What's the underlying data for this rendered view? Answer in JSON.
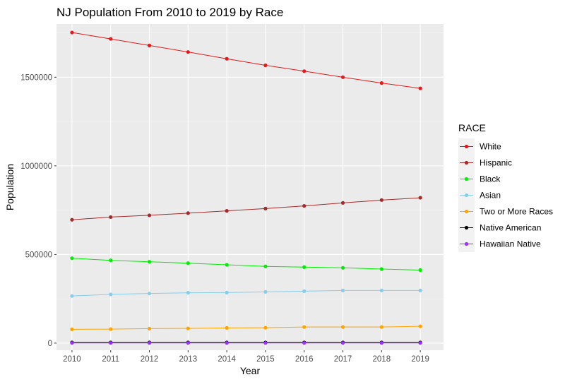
{
  "chart_data": {
    "type": "line",
    "title": "NJ Population From 2010 to 2019 by Race",
    "xlabel": "Year",
    "ylabel": "Population",
    "x": [
      2010,
      2011,
      2012,
      2013,
      2014,
      2015,
      2016,
      2017,
      2018,
      2019
    ],
    "xlim": [
      2009.6,
      2019.6
    ],
    "ylim": [
      -40000,
      1800000
    ],
    "yticks": [
      0,
      500000,
      1000000,
      1500000
    ],
    "ytick_labels": [
      "0",
      "500000",
      "1000000",
      "1500000"
    ],
    "grid": true,
    "legend": {
      "title": "RACE",
      "position": "right"
    },
    "series": [
      {
        "name": "White",
        "color": "#e41a1c",
        "values": [
          1752000,
          1716000,
          1679000,
          1642000,
          1604000,
          1567000,
          1534000,
          1500000,
          1467000,
          1437000
        ]
      },
      {
        "name": "Hispanic",
        "color": "#a52a2a",
        "values": [
          696000,
          711000,
          721000,
          733000,
          746000,
          759000,
          774000,
          791000,
          807000,
          820000
        ]
      },
      {
        "name": "Black",
        "color": "#00ee00",
        "values": [
          479000,
          467000,
          459000,
          451000,
          442000,
          433000,
          429000,
          425000,
          418000,
          412000
        ]
      },
      {
        "name": "Asian",
        "color": "#87ceeb",
        "values": [
          266000,
          275000,
          280000,
          284000,
          285000,
          289000,
          293000,
          297000,
          297000,
          297000
        ]
      },
      {
        "name": "Two or More Races",
        "color": "#ffa500",
        "values": [
          78000,
          79000,
          82000,
          83000,
          86000,
          87000,
          91000,
          91000,
          91000,
          95000
        ]
      },
      {
        "name": "Native American",
        "color": "#000000",
        "values": [
          4000,
          4000,
          4000,
          4000,
          4000,
          4000,
          4000,
          4000,
          4000,
          4000
        ]
      },
      {
        "name": "Hawaiian Native",
        "color": "#9b30ff",
        "values": [
          1000,
          1000,
          1000,
          1000,
          1000,
          1000,
          1000,
          1000,
          1000,
          1000
        ]
      }
    ]
  }
}
